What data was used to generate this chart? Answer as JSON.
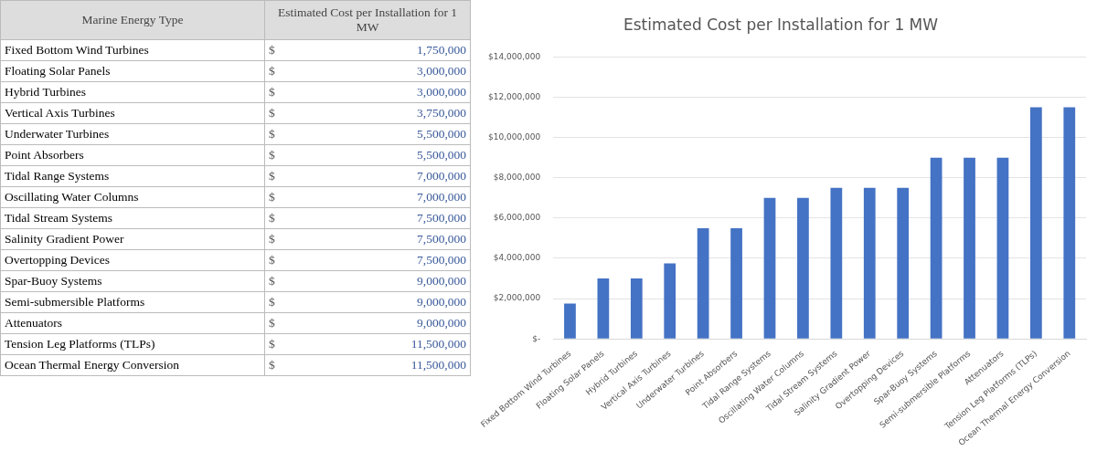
{
  "chart_data": {
    "type": "bar",
    "title": "Estimated Cost per Installation for 1 MW",
    "categories": [
      "Fixed Bottom Wind Turbines",
      "Floating Solar Panels",
      "Hybrid Turbines",
      "Vertical Axis Turbines",
      "Underwater Turbines",
      "Point Absorbers",
      "Tidal Range Systems",
      "Oscillating Water Columns",
      "Tidal Stream Systems",
      "Salinity Gradient Power",
      "Overtopping Devices",
      "Spar-Buoy Systems",
      "Semi-submersible Platforms",
      "Attenuators",
      "Tension Leg Platforms (TLPs)",
      "Ocean Thermal Energy Conversion"
    ],
    "values": [
      1750000,
      3000000,
      3000000,
      3750000,
      5500000,
      5500000,
      7000000,
      7000000,
      7500000,
      7500000,
      7500000,
      9000000,
      9000000,
      9000000,
      11500000,
      11500000
    ],
    "value_labels": [
      "$ 1,750,000",
      "$ 3,000,000",
      "$ 3,000,000",
      "$ 3,750,000",
      "$ 5,500,000",
      "$ 5,500,000",
      "$ 7,000,000",
      "$ 7,000,000",
      "$ 7,500,000",
      "$ 7,500,000",
      "$ 7,500,000",
      "$ 9,000,000",
      "$ 9,000,000",
      "$ 9,000,000",
      "$ 11,500,000",
      "$ 11,500,000"
    ],
    "color": "#4472c4",
    "ylim": [
      0,
      14000000
    ],
    "yticks": [
      {
        "value": 0,
        "label": "$-"
      },
      {
        "value": 2000000,
        "label": "$2,000,000"
      },
      {
        "value": 4000000,
        "label": "$4,000,000"
      },
      {
        "value": 6000000,
        "label": "$6,000,000"
      },
      {
        "value": 8000000,
        "label": "$8,000,000"
      },
      {
        "value": 10000000,
        "label": "$10,000,000"
      },
      {
        "value": 12000000,
        "label": "$12,000,000"
      },
      {
        "value": 14000000,
        "label": "$14,000,000"
      }
    ],
    "grid": "y",
    "legend": false,
    "annotations": [
      "Marine Energy Type",
      "Estimated Cost per Installation for 1 MW"
    ]
  }
}
